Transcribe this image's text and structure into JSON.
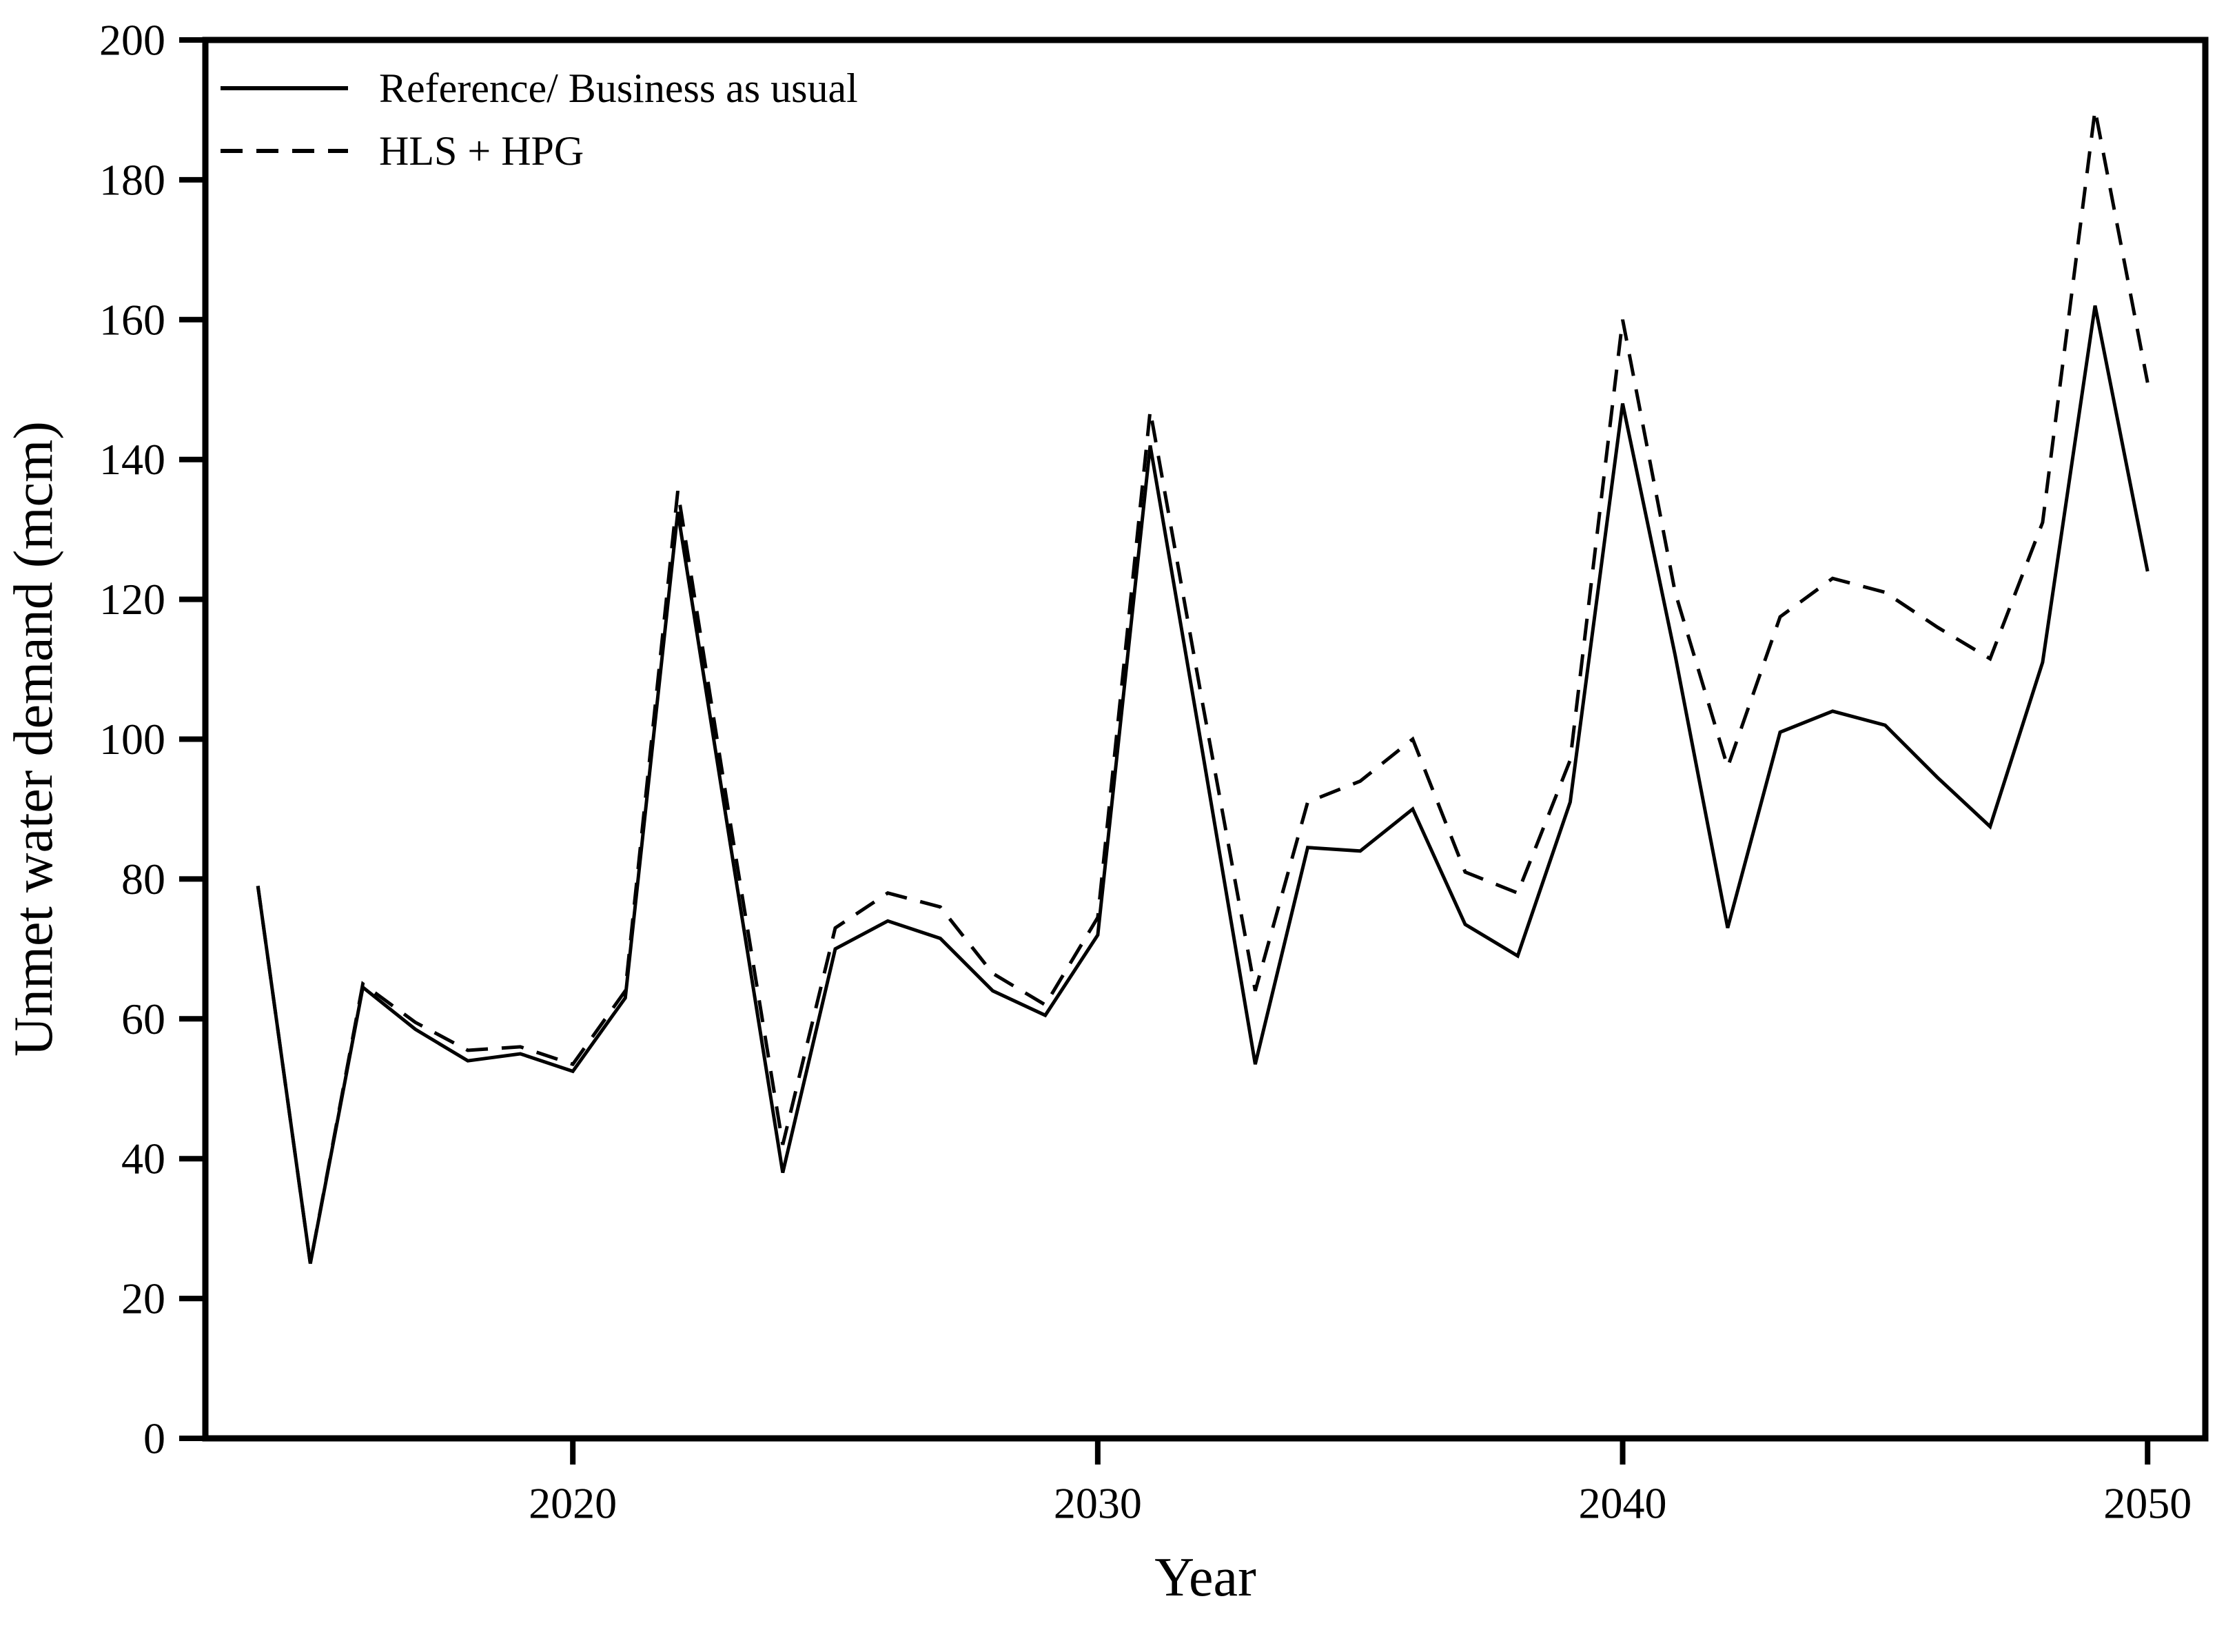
{
  "figure": {
    "background_color": "#ffffff",
    "line_color": "#000000",
    "frame_color": "#000000"
  },
  "chart_data": {
    "type": "line",
    "title": "",
    "xlabel": "Year",
    "ylabel": "Unmet water demand (mcm)",
    "grid": false,
    "legend_position": "top-left",
    "xlim": [
      2013,
      2051.1
    ],
    "ylim": [
      0,
      200
    ],
    "x_ticks": [
      2020,
      2030,
      2040,
      2050
    ],
    "y_ticks": [
      0,
      20,
      40,
      60,
      80,
      100,
      120,
      140,
      160,
      180,
      200
    ],
    "x": [
      2014,
      2015,
      2016,
      2017,
      2018,
      2019,
      2020,
      2021,
      2022,
      2023,
      2024,
      2025,
      2026,
      2027,
      2028,
      2029,
      2030,
      2031,
      2032,
      2033,
      2034,
      2035,
      2036,
      2037,
      2038,
      2039,
      2040,
      2041,
      2042,
      2043,
      2044,
      2045,
      2046,
      2047,
      2048,
      2049,
      2050
    ],
    "series": [
      {
        "name": "Reference/ Business as usual",
        "style": "solid",
        "color": "#000000",
        "values": [
          79,
          25,
          64.5,
          58.5,
          54,
          55,
          52.5,
          63,
          132.5,
          85,
          38,
          70,
          74,
          71.5,
          64,
          60.5,
          72,
          142,
          98,
          53.5,
          84.5,
          84,
          90,
          73.5,
          69,
          91,
          148,
          112,
          73,
          101,
          104,
          102,
          94.5,
          87.5,
          111,
          162,
          124
        ]
      },
      {
        "name": "HLS + HPG",
        "style": "dashed",
        "color": "#000000",
        "values": [
          79,
          25,
          65,
          59.5,
          55.5,
          56,
          53.5,
          64,
          135.5,
          88,
          42,
          73,
          78,
          76,
          66.5,
          62,
          74.5,
          147,
          105,
          64,
          91,
          94,
          100,
          81,
          78,
          97,
          160,
          121,
          96,
          117.5,
          123,
          121,
          116,
          111.5,
          131,
          190,
          151
        ]
      }
    ],
    "legend": {
      "items": [
        {
          "label": "Reference/ Business as usual",
          "line_style": "solid"
        },
        {
          "label": "HLS + HPG",
          "line_style": "dashed"
        }
      ]
    }
  }
}
